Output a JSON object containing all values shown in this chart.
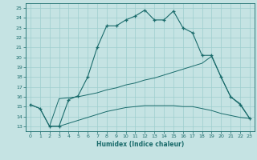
{
  "xlabel": "Humidex (Indice chaleur)",
  "bg_color": "#c5e3e3",
  "grid_color": "#9ecece",
  "line_color": "#1a6b6b",
  "xlim": [
    -0.5,
    23.5
  ],
  "ylim": [
    12.5,
    25.5
  ],
  "xticks": [
    0,
    1,
    2,
    3,
    4,
    5,
    6,
    7,
    8,
    9,
    10,
    11,
    12,
    13,
    14,
    15,
    16,
    17,
    18,
    19,
    20,
    21,
    22,
    23
  ],
  "yticks": [
    13,
    14,
    15,
    16,
    17,
    18,
    19,
    20,
    21,
    22,
    23,
    24,
    25
  ],
  "line1_x": [
    0,
    1,
    2,
    3,
    4,
    5,
    6,
    7,
    8,
    9,
    10,
    11,
    12,
    13,
    14,
    15,
    16,
    17,
    18,
    19,
    20,
    21,
    22,
    23
  ],
  "line1_y": [
    15.2,
    14.8,
    13.0,
    13.0,
    15.7,
    16.1,
    18.0,
    21.0,
    23.2,
    23.2,
    23.8,
    24.2,
    24.8,
    23.8,
    23.8,
    24.7,
    23.0,
    22.5,
    20.2,
    20.2,
    18.0,
    16.0,
    15.2,
    13.8
  ],
  "line2_x": [
    2,
    3,
    4,
    5,
    6,
    7,
    8,
    9,
    10,
    11,
    12,
    13,
    14,
    15,
    16,
    17,
    18,
    19,
    20,
    21,
    22,
    23
  ],
  "line2_y": [
    13.0,
    13.0,
    13.3,
    13.6,
    13.9,
    14.2,
    14.5,
    14.7,
    14.9,
    15.0,
    15.1,
    15.1,
    15.1,
    15.1,
    15.0,
    15.0,
    14.8,
    14.6,
    14.3,
    14.1,
    13.9,
    13.8
  ],
  "line3_x": [
    0,
    1,
    2,
    3,
    4,
    5,
    6,
    7,
    8,
    9,
    10,
    11,
    12,
    13,
    14,
    15,
    16,
    17,
    18,
    19,
    20,
    21,
    22,
    23
  ],
  "line3_y": [
    15.2,
    14.8,
    13.0,
    15.8,
    15.9,
    16.0,
    16.2,
    16.4,
    16.7,
    16.9,
    17.2,
    17.4,
    17.7,
    17.9,
    18.2,
    18.5,
    18.8,
    19.1,
    19.4,
    20.1,
    18.0,
    16.0,
    15.3,
    13.8
  ]
}
